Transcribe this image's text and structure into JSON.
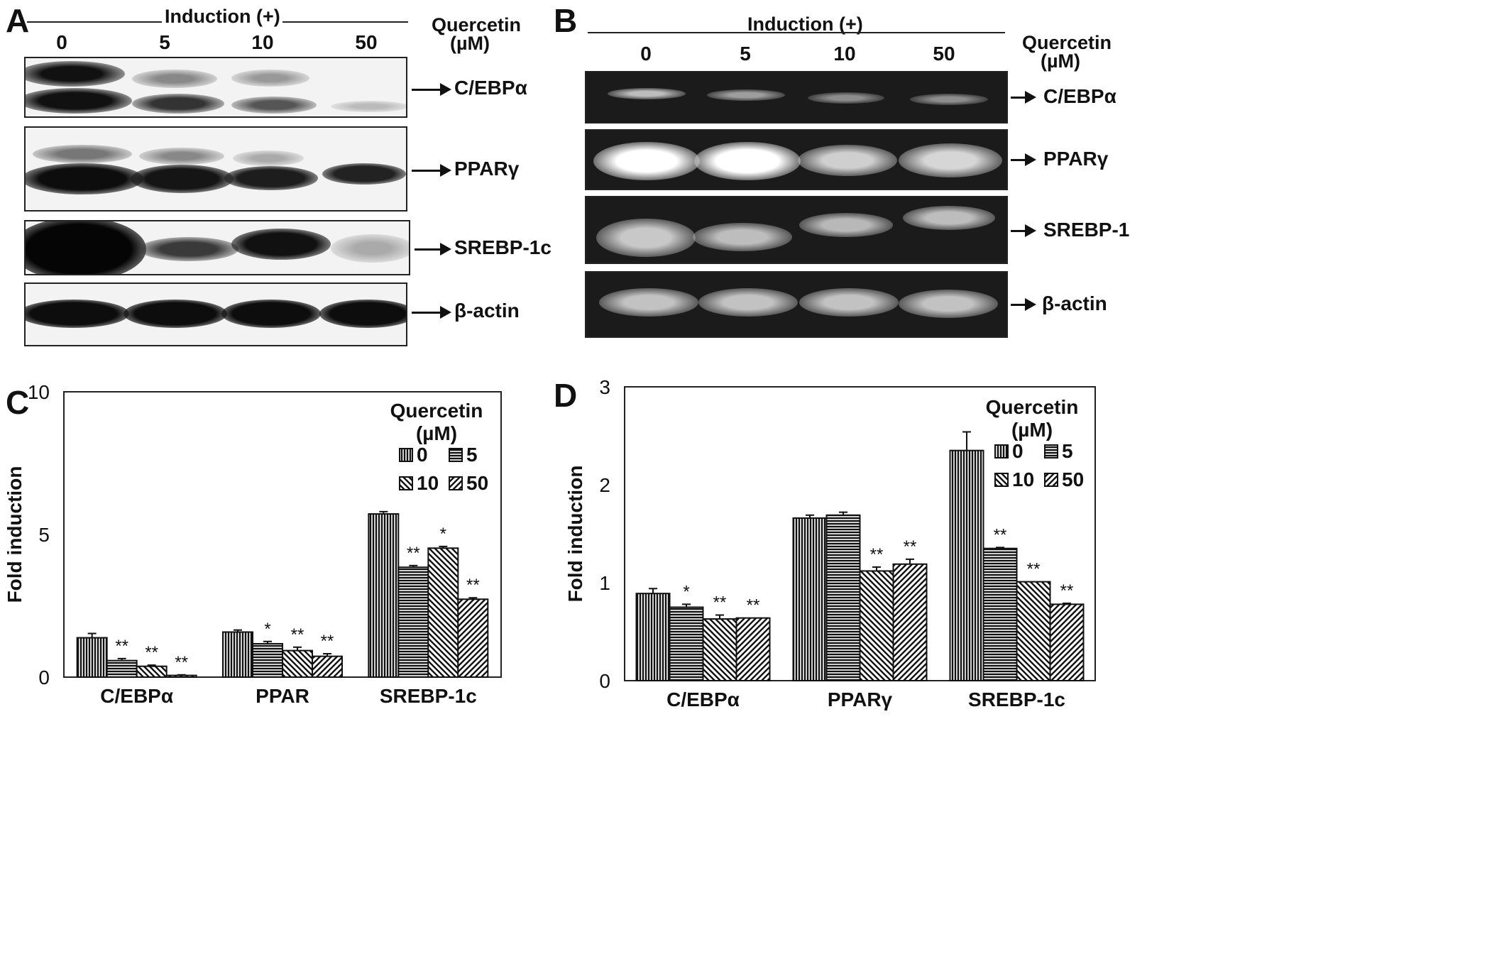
{
  "panel_a": {
    "letter": "A",
    "induction": "Induction (+)",
    "quercetin": "Quercetin",
    "unit": "(µM)",
    "lanes": [
      "0",
      "5",
      "10",
      "50"
    ],
    "bands": [
      "C/EBPα",
      "PPARγ",
      "SREBP-1c",
      "β-actin"
    ]
  },
  "panel_b": {
    "letter": "B",
    "induction": "Induction (+)",
    "quercetin": "Quercetin",
    "unit": "(µM)",
    "lanes": [
      "0",
      "5",
      "10",
      "50"
    ],
    "bands": [
      "C/EBPα",
      "PPARγ",
      "SREBP-1",
      "β-actin"
    ]
  },
  "panel_c_letter": "C",
  "panel_d_letter": "D",
  "chart_data": [
    {
      "type": "bar",
      "panel": "C",
      "title": "",
      "ylabel": "Fold induction",
      "xlabel": "",
      "ylim": [
        0,
        10
      ],
      "yticks": [
        0,
        5,
        10
      ],
      "categories": [
        "C/EBPα",
        "PPAR",
        "SREBP-1c"
      ],
      "legend_title": [
        "Quercetin",
        "(µM)"
      ],
      "legend_position": "top-right",
      "series": [
        {
          "name": "0",
          "values": [
            1.38,
            1.58,
            5.72
          ],
          "errors": [
            0.15,
            0.07,
            0.08
          ],
          "stars": [
            "",
            "",
            ""
          ]
        },
        {
          "name": "5",
          "values": [
            0.58,
            1.17,
            3.85
          ],
          "errors": [
            0.07,
            0.08,
            0.06
          ],
          "stars": [
            "**",
            "*",
            "**"
          ]
        },
        {
          "name": "10",
          "values": [
            0.38,
            0.93,
            4.52
          ],
          "errors": [
            0.04,
            0.12,
            0.06
          ],
          "stars": [
            "**",
            "**",
            "*"
          ]
        },
        {
          "name": "50",
          "values": [
            0.06,
            0.73,
            2.73
          ],
          "errors": [
            0.02,
            0.09,
            0.05
          ],
          "stars": [
            "**",
            "**",
            "**"
          ]
        }
      ]
    },
    {
      "type": "bar",
      "panel": "D",
      "title": "",
      "ylabel": "Fold induction",
      "xlabel": "",
      "ylim": [
        0,
        3
      ],
      "yticks": [
        0,
        1,
        2,
        3
      ],
      "categories": [
        "C/EBPα",
        "PPARγ",
        "SREBP-1c"
      ],
      "legend_title": [
        "Quercetin",
        "(µM)"
      ],
      "legend_position": "top-right",
      "series": [
        {
          "name": "0",
          "values": [
            0.89,
            1.66,
            2.35
          ],
          "errors": [
            0.05,
            0.03,
            0.19
          ],
          "stars": [
            "",
            "",
            ""
          ]
        },
        {
          "name": "5",
          "values": [
            0.75,
            1.69,
            1.35
          ],
          "errors": [
            0.03,
            0.03,
            0.01
          ],
          "stars": [
            "*",
            "",
            "**"
          ]
        },
        {
          "name": "10",
          "values": [
            0.63,
            1.12,
            1.01
          ],
          "errors": [
            0.04,
            0.04,
            0.0
          ],
          "stars": [
            "**",
            "**",
            "**"
          ]
        },
        {
          "name": "50",
          "values": [
            0.64,
            1.19,
            0.78
          ],
          "errors": [
            0.0,
            0.05,
            0.01
          ],
          "stars": [
            "**",
            "**",
            "**"
          ]
        }
      ]
    }
  ]
}
